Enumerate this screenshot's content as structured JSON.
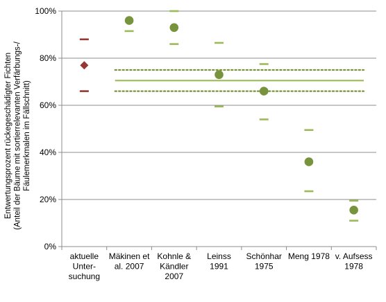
{
  "chart_data": {
    "type": "scatter",
    "ylabel_lines": [
      "Entwertungsprozent rückegeschädigter Fichten",
      "(Anteil der Bäume mit sortierrelevanten Verfärbungs-/",
      "Fäulemerkmalen im Fällschnitt)"
    ],
    "ylim": [
      0,
      100
    ],
    "y_ticks": [
      "0%",
      "20%",
      "40%",
      "60%",
      "80%",
      "100%"
    ],
    "y_tick_values": [
      0,
      20,
      40,
      60,
      80,
      100
    ],
    "grid": true,
    "categories": [
      [
        "aktuelle",
        "Unter-",
        "suchung"
      ],
      [
        "Mäkinen et",
        "al. 2007"
      ],
      [
        "Kohnle &",
        "Kändler",
        "2007"
      ],
      [
        "Leinss",
        "1991"
      ],
      [
        "Schönhar",
        "1975"
      ],
      [
        "Meng 1978"
      ],
      [
        "v. Aufsess",
        "1978"
      ]
    ],
    "points": [
      {
        "value": 77,
        "upper": 88,
        "lower": 66,
        "marker": "diamond",
        "color": "#953735"
      },
      {
        "value": 96,
        "upper": null,
        "lower": 91.5,
        "marker": "circle",
        "color": "#77933c"
      },
      {
        "value": 93,
        "upper": 100,
        "lower": 86,
        "marker": "circle",
        "color": "#77933c"
      },
      {
        "value": 73,
        "upper": 86.5,
        "lower": 59.5,
        "marker": "circle",
        "color": "#77933c"
      },
      {
        "value": 66,
        "upper": 77.5,
        "lower": 54,
        "marker": "circle",
        "color": "#77933c"
      },
      {
        "value": 36,
        "upper": 49.5,
        "lower": 23.5,
        "marker": "circle",
        "color": "#77933c"
      },
      {
        "value": 15.5,
        "upper": 19.5,
        "lower": 11,
        "marker": "circle",
        "color": "#77933c"
      }
    ],
    "reference_lines": [
      {
        "value": 70.5,
        "style": "solid",
        "color": "#9bbb59"
      },
      {
        "value": 75,
        "style": "dotted",
        "color": "#77933c"
      },
      {
        "value": 66,
        "style": "dotted",
        "color": "#77933c"
      }
    ],
    "reference_span": [
      2,
      7
    ]
  }
}
